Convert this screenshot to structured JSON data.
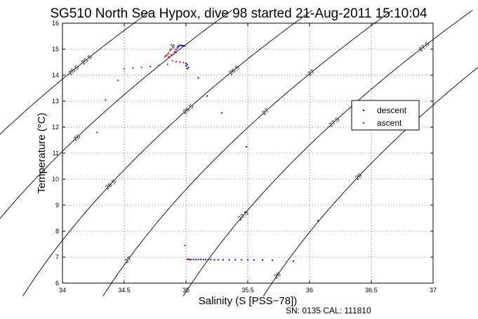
{
  "chart_data": {
    "type": "scatter",
    "title": "SG510 North Sea Hypox, dive 98 started 21-Aug-2011 15:10:04",
    "xlabel": "Salinity (S [PSS−78])",
    "ylabel": "Temperature (°C)",
    "footer": "SN: 0135  CAL: 111810",
    "xlim": [
      34,
      37
    ],
    "ylim": [
      6,
      16
    ],
    "xticks": [
      34,
      34.5,
      35,
      35.5,
      36,
      36.5,
      37
    ],
    "xtick_labels": [
      "34",
      "34.5",
      "35",
      "35.5",
      "36",
      "36.5",
      "37"
    ],
    "yticks": [
      6,
      7,
      8,
      9,
      10,
      11,
      12,
      13,
      14,
      15,
      16
    ],
    "ytick_labels": [
      "6",
      "7",
      "8",
      "9",
      "10",
      "11",
      "12",
      "13",
      "14",
      "15",
      "16"
    ],
    "grid": true,
    "legend_position": "right",
    "series": [
      {
        "name": "descent",
        "color": "#0000ff",
        "points": [
          [
            34.94,
            15.1
          ],
          [
            34.93,
            15.05
          ],
          [
            34.92,
            14.98
          ],
          [
            34.91,
            14.9
          ],
          [
            34.935,
            15.12
          ],
          [
            34.95,
            15.15
          ],
          [
            34.9,
            15.15
          ],
          [
            34.96,
            15.14
          ],
          [
            34.97,
            15.14
          ],
          [
            34.98,
            15.13
          ],
          [
            34.99,
            15.13
          ],
          [
            35.0,
            14.45
          ],
          [
            35.01,
            14.4
          ],
          [
            35.0,
            14.35
          ],
          [
            35.02,
            14.3
          ],
          [
            35.01,
            14.25
          ],
          [
            35.1,
            13.9
          ],
          [
            35.17,
            13.2
          ],
          [
            35.29,
            12.55
          ],
          [
            35.49,
            11.25
          ],
          [
            36.07,
            8.4
          ],
          [
            35.02,
            6.92
          ],
          [
            35.04,
            6.91
          ],
          [
            35.06,
            6.91
          ],
          [
            35.08,
            6.91
          ],
          [
            35.1,
            6.91
          ],
          [
            35.12,
            6.91
          ],
          [
            35.14,
            6.91
          ],
          [
            35.16,
            6.91
          ],
          [
            35.18,
            6.91
          ],
          [
            35.2,
            6.91
          ],
          [
            35.23,
            6.9
          ],
          [
            35.26,
            6.9
          ],
          [
            35.3,
            6.9
          ],
          [
            35.35,
            6.9
          ],
          [
            35.4,
            6.9
          ],
          [
            35.45,
            6.9
          ],
          [
            35.5,
            6.9
          ],
          [
            35.55,
            6.89
          ],
          [
            35.62,
            6.89
          ],
          [
            35.7,
            6.88
          ],
          [
            35.87,
            6.85
          ]
        ]
      },
      {
        "name": "ascent",
        "color": "#ff0000",
        "points": [
          [
            34.88,
            15.17
          ],
          [
            34.89,
            15.1
          ],
          [
            34.9,
            15.05
          ],
          [
            34.88,
            15.0
          ],
          [
            34.87,
            14.95
          ],
          [
            34.86,
            14.85
          ],
          [
            34.85,
            14.8
          ],
          [
            34.84,
            14.75
          ],
          [
            34.83,
            14.72
          ],
          [
            34.88,
            14.78
          ],
          [
            34.9,
            14.82
          ],
          [
            34.92,
            14.88
          ],
          [
            34.86,
            14.7
          ],
          [
            34.89,
            14.55
          ],
          [
            34.92,
            14.52
          ],
          [
            34.95,
            14.5
          ],
          [
            34.98,
            14.48
          ],
          [
            34.85,
            14.42
          ],
          [
            34.78,
            14.38
          ],
          [
            34.71,
            14.33
          ],
          [
            34.64,
            14.3
          ],
          [
            34.57,
            14.28
          ],
          [
            34.5,
            14.25
          ],
          [
            34.45,
            13.8
          ],
          [
            34.35,
            13.05
          ],
          [
            34.28,
            11.8
          ],
          [
            34.99,
            7.45
          ],
          [
            35.01,
            6.92
          ],
          [
            35.03,
            6.9
          ]
        ]
      }
    ],
    "contour_labels": [
      "25.5",
      "26",
      "26.5",
      "27",
      "27.5",
      "28"
    ]
  }
}
